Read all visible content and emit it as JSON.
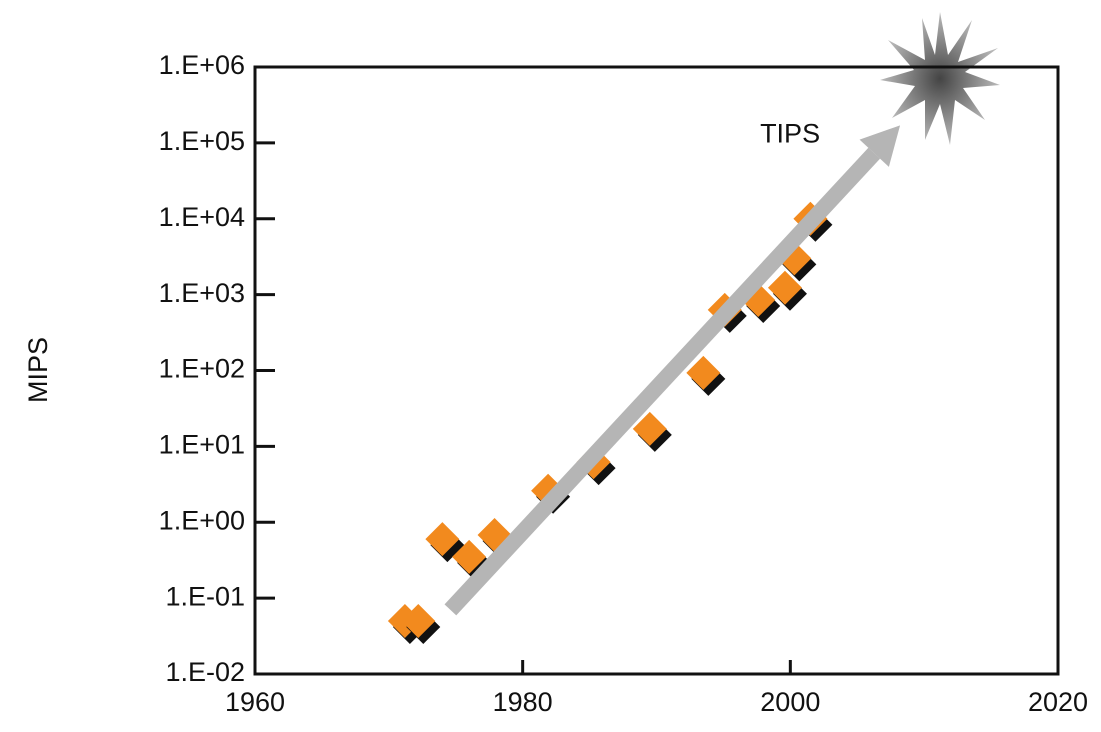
{
  "chart_data": {
    "type": "scatter",
    "y_label": "MIPS",
    "log_y": true,
    "xlim": [
      1960,
      2020
    ],
    "xticks": [
      1960,
      1980,
      2000,
      2020
    ],
    "ylim": [
      0.01,
      1000000
    ],
    "yticks": [
      {
        "value": 0.01,
        "label": "1.E-02"
      },
      {
        "value": 0.1,
        "label": "1.E-01"
      },
      {
        "value": 1,
        "label": "1.E+00"
      },
      {
        "value": 10,
        "label": "1.E+01"
      },
      {
        "value": 100,
        "label": "1.E+02"
      },
      {
        "value": 1000,
        "label": "1.E+03"
      },
      {
        "value": 10000,
        "label": "1.E+04"
      },
      {
        "value": 100000,
        "label": "1.E+05"
      },
      {
        "value": 1000000,
        "label": "1.E+06"
      }
    ],
    "series": [
      {
        "color": "#f28a1e",
        "x": [
          1971.2,
          1972.2,
          1974,
          1976,
          1977.9,
          1981.9,
          1985.3,
          1989.5,
          1993.5,
          1995.1,
          1997.6,
          1999.6,
          2000.3,
          2001.5
        ],
        "values": [
          0.05,
          0.05,
          0.6,
          0.35,
          0.68,
          2.6,
          6.2,
          17,
          93,
          630,
          850,
          1230,
          3000,
          10000
        ]
      }
    ],
    "trend_arrow": {
      "label": "TIPS",
      "color": "#b5b5b5",
      "x": [
        1974.6,
        2008.2
      ],
      "y": [
        0.07,
        170000
      ]
    }
  }
}
